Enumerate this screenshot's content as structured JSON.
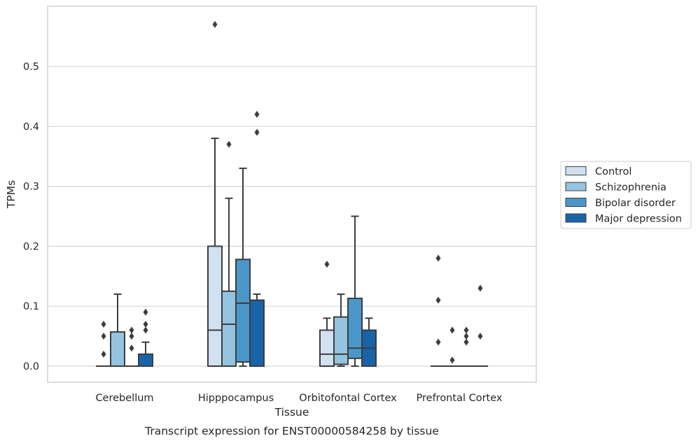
{
  "chart_data": {
    "type": "box",
    "title": "Transcript expression for ENST00000584258 by tissue",
    "xlabel": "Tissue",
    "ylabel": "TPMs",
    "ylim": [
      -0.028,
      0.6
    ],
    "yticks": [
      "0.0",
      "0.1",
      "0.2",
      "0.3",
      "0.4",
      "0.5"
    ],
    "categories": [
      "Cerebellum",
      "Hipppocampus",
      "Orbitofontal Cortex",
      "Prefrontal Cortex"
    ],
    "grid": true,
    "legend_position": "outside-right",
    "series": [
      {
        "name": "Control",
        "color": "#d0e1f2",
        "boxes": [
          {
            "min": 0,
            "q1": 0,
            "median": 0,
            "q3": 0,
            "max": 0,
            "outliers": [
              0.02,
              0.05,
              0.07
            ]
          },
          {
            "min": 0,
            "q1": 0,
            "median": 0.06,
            "q3": 0.2,
            "max": 0.38,
            "outliers": [
              0.57
            ]
          },
          {
            "min": 0,
            "q1": 0,
            "median": 0.02,
            "q3": 0.06,
            "max": 0.08,
            "outliers": [
              0.17
            ]
          },
          {
            "min": 0,
            "q1": 0,
            "median": 0,
            "q3": 0,
            "max": 0,
            "outliers": [
              0.04,
              0.11,
              0.18
            ]
          }
        ]
      },
      {
        "name": "Schizophrenia",
        "color": "#94c4df",
        "boxes": [
          {
            "min": 0,
            "q1": 0,
            "median": 0,
            "q3": 0.057,
            "max": 0.12,
            "outliers": []
          },
          {
            "min": 0,
            "q1": 0,
            "median": 0.07,
            "q3": 0.125,
            "max": 0.28,
            "outliers": [
              0.37
            ]
          },
          {
            "min": 0,
            "q1": 0.003,
            "median": 0.02,
            "q3": 0.082,
            "max": 0.12,
            "outliers": []
          },
          {
            "min": 0,
            "q1": 0,
            "median": 0,
            "q3": 0,
            "max": 0,
            "outliers": [
              0.01,
              0.06
            ]
          }
        ]
      },
      {
        "name": "Bipolar disorder",
        "color": "#4a98c9",
        "boxes": [
          {
            "min": 0,
            "q1": 0,
            "median": 0,
            "q3": 0,
            "max": 0,
            "outliers": [
              0.03,
              0.05,
              0.06
            ]
          },
          {
            "min": 0,
            "q1": 0.007,
            "median": 0.105,
            "q3": 0.178,
            "max": 0.33,
            "outliers": []
          },
          {
            "min": 0,
            "q1": 0.013,
            "median": 0.03,
            "q3": 0.113,
            "max": 0.25,
            "outliers": []
          },
          {
            "min": 0,
            "q1": 0,
            "median": 0,
            "q3": 0,
            "max": 0,
            "outliers": [
              0.04,
              0.05,
              0.06
            ]
          }
        ]
      },
      {
        "name": "Major depression",
        "color": "#1764ab",
        "boxes": [
          {
            "min": 0,
            "q1": 0,
            "median": 0,
            "q3": 0.02,
            "max": 0.04,
            "outliers": [
              0.06,
              0.07,
              0.09
            ]
          },
          {
            "min": 0,
            "q1": 0,
            "median": 0.11,
            "q3": 0.11,
            "max": 0.12,
            "outliers": [
              0.39,
              0.42
            ]
          },
          {
            "min": 0,
            "q1": 0,
            "median": 0.03,
            "q3": 0.06,
            "max": 0.08,
            "outliers": []
          },
          {
            "min": 0,
            "q1": 0,
            "median": 0,
            "q3": 0,
            "max": 0,
            "outliers": [
              0.05,
              0.13
            ]
          }
        ]
      }
    ]
  }
}
